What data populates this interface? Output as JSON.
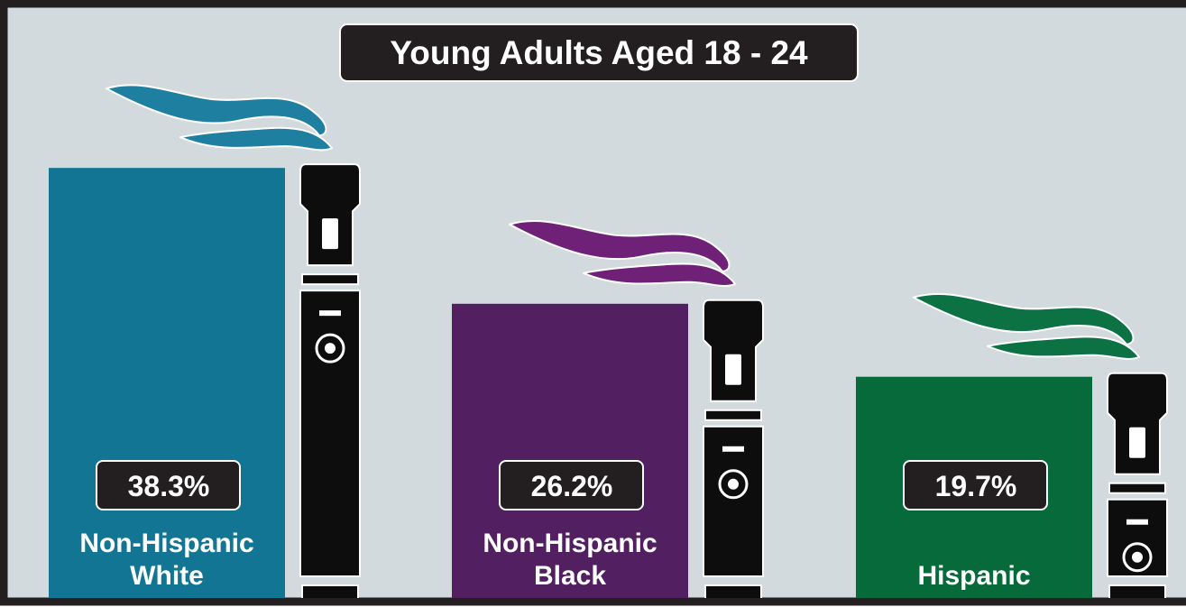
{
  "chart_data": {
    "type": "bar",
    "title": "Young Adults Aged 18 - 24",
    "categories": [
      "Non-Hispanic White",
      "Non-Hispanic Black",
      "Hispanic"
    ],
    "category_lines": [
      [
        "Non-Hispanic",
        "White"
      ],
      [
        "Non-Hispanic",
        "Black"
      ],
      [
        "Hispanic"
      ]
    ],
    "values": [
      38.3,
      26.2,
      19.7
    ],
    "value_labels": [
      "38.3%",
      "26.2%",
      "19.7%"
    ],
    "unit": "%",
    "colors": [
      "#137594",
      "#522060",
      "#066a3a"
    ],
    "smoke_colors": [
      "#1f7fa0",
      "#6e2177",
      "#0c7143"
    ],
    "grid": false,
    "legend": "none",
    "decoration": "vape-pen-icon"
  },
  "colors": {
    "background": "#d3dade",
    "frame": "#231f20",
    "pen": "#0d0d0d",
    "title_box": "#231f20"
  }
}
